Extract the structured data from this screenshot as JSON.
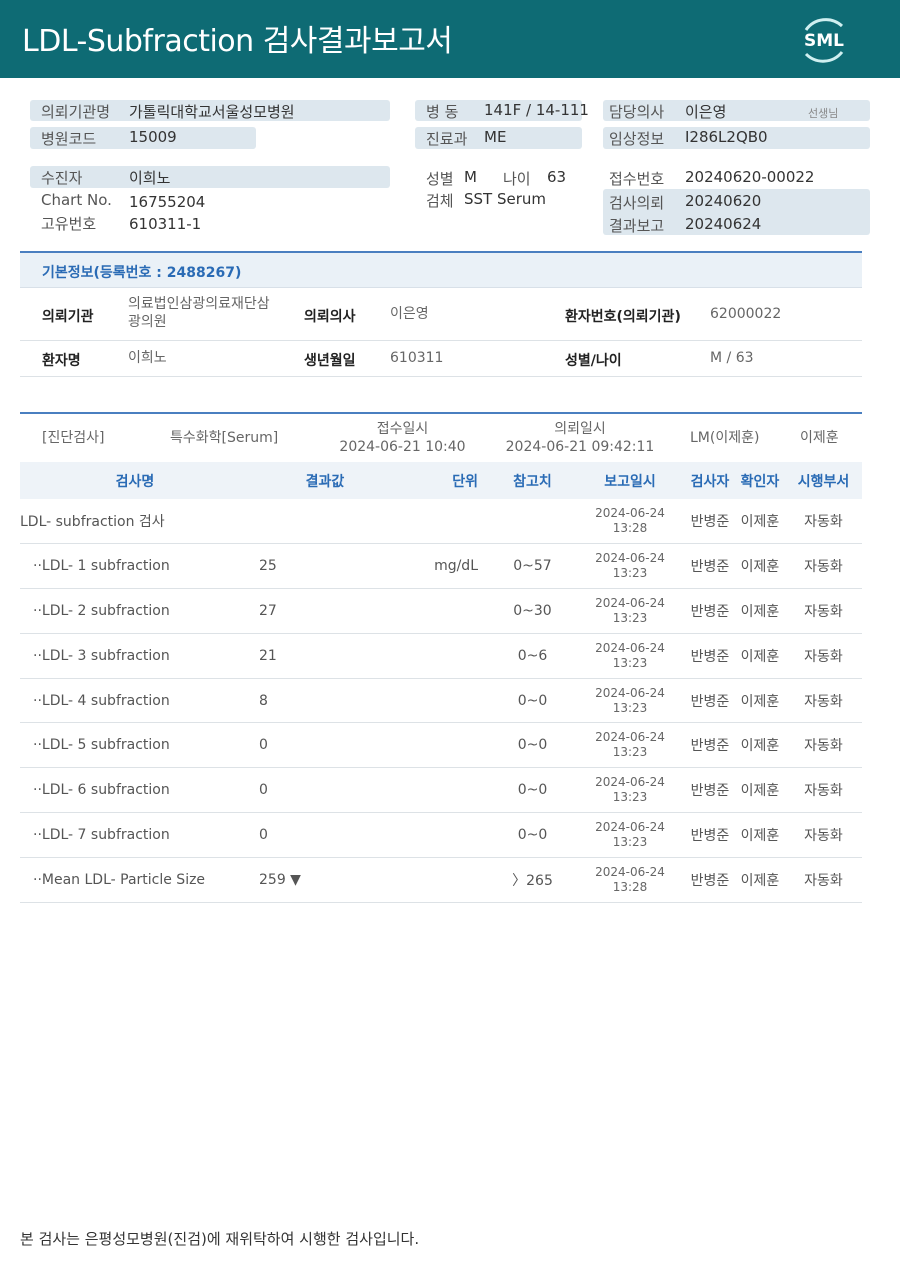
{
  "header": {
    "title": "LDL-Subfraction 검사결과보고서",
    "logo_text": "SML",
    "color": "#0e6b74"
  },
  "patient_info": {
    "institution_label": "의뢰기관명",
    "institution": "가톨릭대학교서울성모병원",
    "hospital_code_label": "병원코드",
    "hospital_code": "15009",
    "ward_label": "병 동",
    "ward": "141F / 14-111",
    "dept_label": "진료과",
    "dept": "ME",
    "doctor_label": "담당의사",
    "doctor": "이은영",
    "doctor_suffix": "선생님",
    "clinical_label": "임상정보",
    "clinical": "I286L2QB0",
    "patient_label": "수진자",
    "patient": "이희노",
    "chart_label": "Chart No.",
    "chart": "16755204",
    "unique_label": "고유번호",
    "unique": "610311-1",
    "sex_label": "성별",
    "sex": "M",
    "age_label": "나이",
    "age": "63",
    "specimen_label": "검체",
    "specimen": "SST Serum",
    "receipt_label": "접수번호",
    "receipt": "20240620-00022",
    "request_label": "검사의뢰",
    "request": "20240620",
    "report_label": "결과보고",
    "report": "20240624"
  },
  "basic": {
    "title": "기본정보(등록번호 : 2488267)",
    "rows": [
      {
        "l1": "의뢰기관",
        "v1a": "의료법인삼광의료재단삼",
        "v1b": "광의원",
        "l2": "의뢰의사",
        "v2": "이은영",
        "l3": "환자번호(의뢰기관)",
        "v3": "62000022"
      },
      {
        "l1": "환자명",
        "v1a": "이희노",
        "v1b": "",
        "l2": "생년월일",
        "v2": "610311",
        "l3": "성별/나이",
        "v3": "M / 63"
      }
    ]
  },
  "test_info": {
    "category": "[진단검사]",
    "type": "특수화학[Serum]",
    "received_label": "접수일시",
    "received": "2024-06-21 10:40",
    "requested_label": "의뢰일시",
    "requested": "2024-06-21 09:42:11",
    "lab": "LM(이제훈)",
    "confirmer": "이제훈"
  },
  "table": {
    "headers": [
      "검사명",
      "결과값",
      "단위",
      "참고치",
      "보고일시",
      "검사자",
      "확인자",
      "시행부서"
    ],
    "rows": [
      {
        "name": "LDL- subfraction 검사",
        "result": "",
        "unit": "",
        "ref": "",
        "date": "2024-06-24",
        "time": "13:28",
        "tester": "반병준",
        "confirmer": "이제훈",
        "dept": "자동화"
      },
      {
        "name": "··LDL- 1 subfraction",
        "result": "25",
        "unit": "mg/dL",
        "ref": "0~57",
        "date": "2024-06-24",
        "time": "13:23",
        "tester": "반병준",
        "confirmer": "이제훈",
        "dept": "자동화"
      },
      {
        "name": "··LDL- 2 subfraction",
        "result": "27",
        "unit": "",
        "ref": "0~30",
        "date": "2024-06-24",
        "time": "13:23",
        "tester": "반병준",
        "confirmer": "이제훈",
        "dept": "자동화"
      },
      {
        "name": "··LDL- 3 subfraction",
        "result": "21",
        "unit": "",
        "ref": "0~6",
        "date": "2024-06-24",
        "time": "13:23",
        "tester": "반병준",
        "confirmer": "이제훈",
        "dept": "자동화"
      },
      {
        "name": "··LDL- 4 subfraction",
        "result": "8",
        "unit": "",
        "ref": "0~0",
        "date": "2024-06-24",
        "time": "13:23",
        "tester": "반병준",
        "confirmer": "이제훈",
        "dept": "자동화"
      },
      {
        "name": "··LDL- 5 subfraction",
        "result": "0",
        "unit": "",
        "ref": "0~0",
        "date": "2024-06-24",
        "time": "13:23",
        "tester": "반병준",
        "confirmer": "이제훈",
        "dept": "자동화"
      },
      {
        "name": "··LDL- 6 subfraction",
        "result": "0",
        "unit": "",
        "ref": "0~0",
        "date": "2024-06-24",
        "time": "13:23",
        "tester": "반병준",
        "confirmer": "이제훈",
        "dept": "자동화"
      },
      {
        "name": "··LDL- 7 subfraction",
        "result": "0",
        "unit": "",
        "ref": "0~0",
        "date": "2024-06-24",
        "time": "13:23",
        "tester": "반병준",
        "confirmer": "이제훈",
        "dept": "자동화"
      },
      {
        "name": "··Mean LDL- Particle Size",
        "result": "259 ▼",
        "unit": "",
        "ref": "〉265",
        "date": "2024-06-24",
        "time": "13:28",
        "tester": "반병준",
        "confirmer": "이제훈",
        "dept": "자동화"
      }
    ]
  },
  "footer": {
    "note": "본 검사는 은평성모병원(진검)에 재위탁하여 시행한 검사입니다."
  }
}
